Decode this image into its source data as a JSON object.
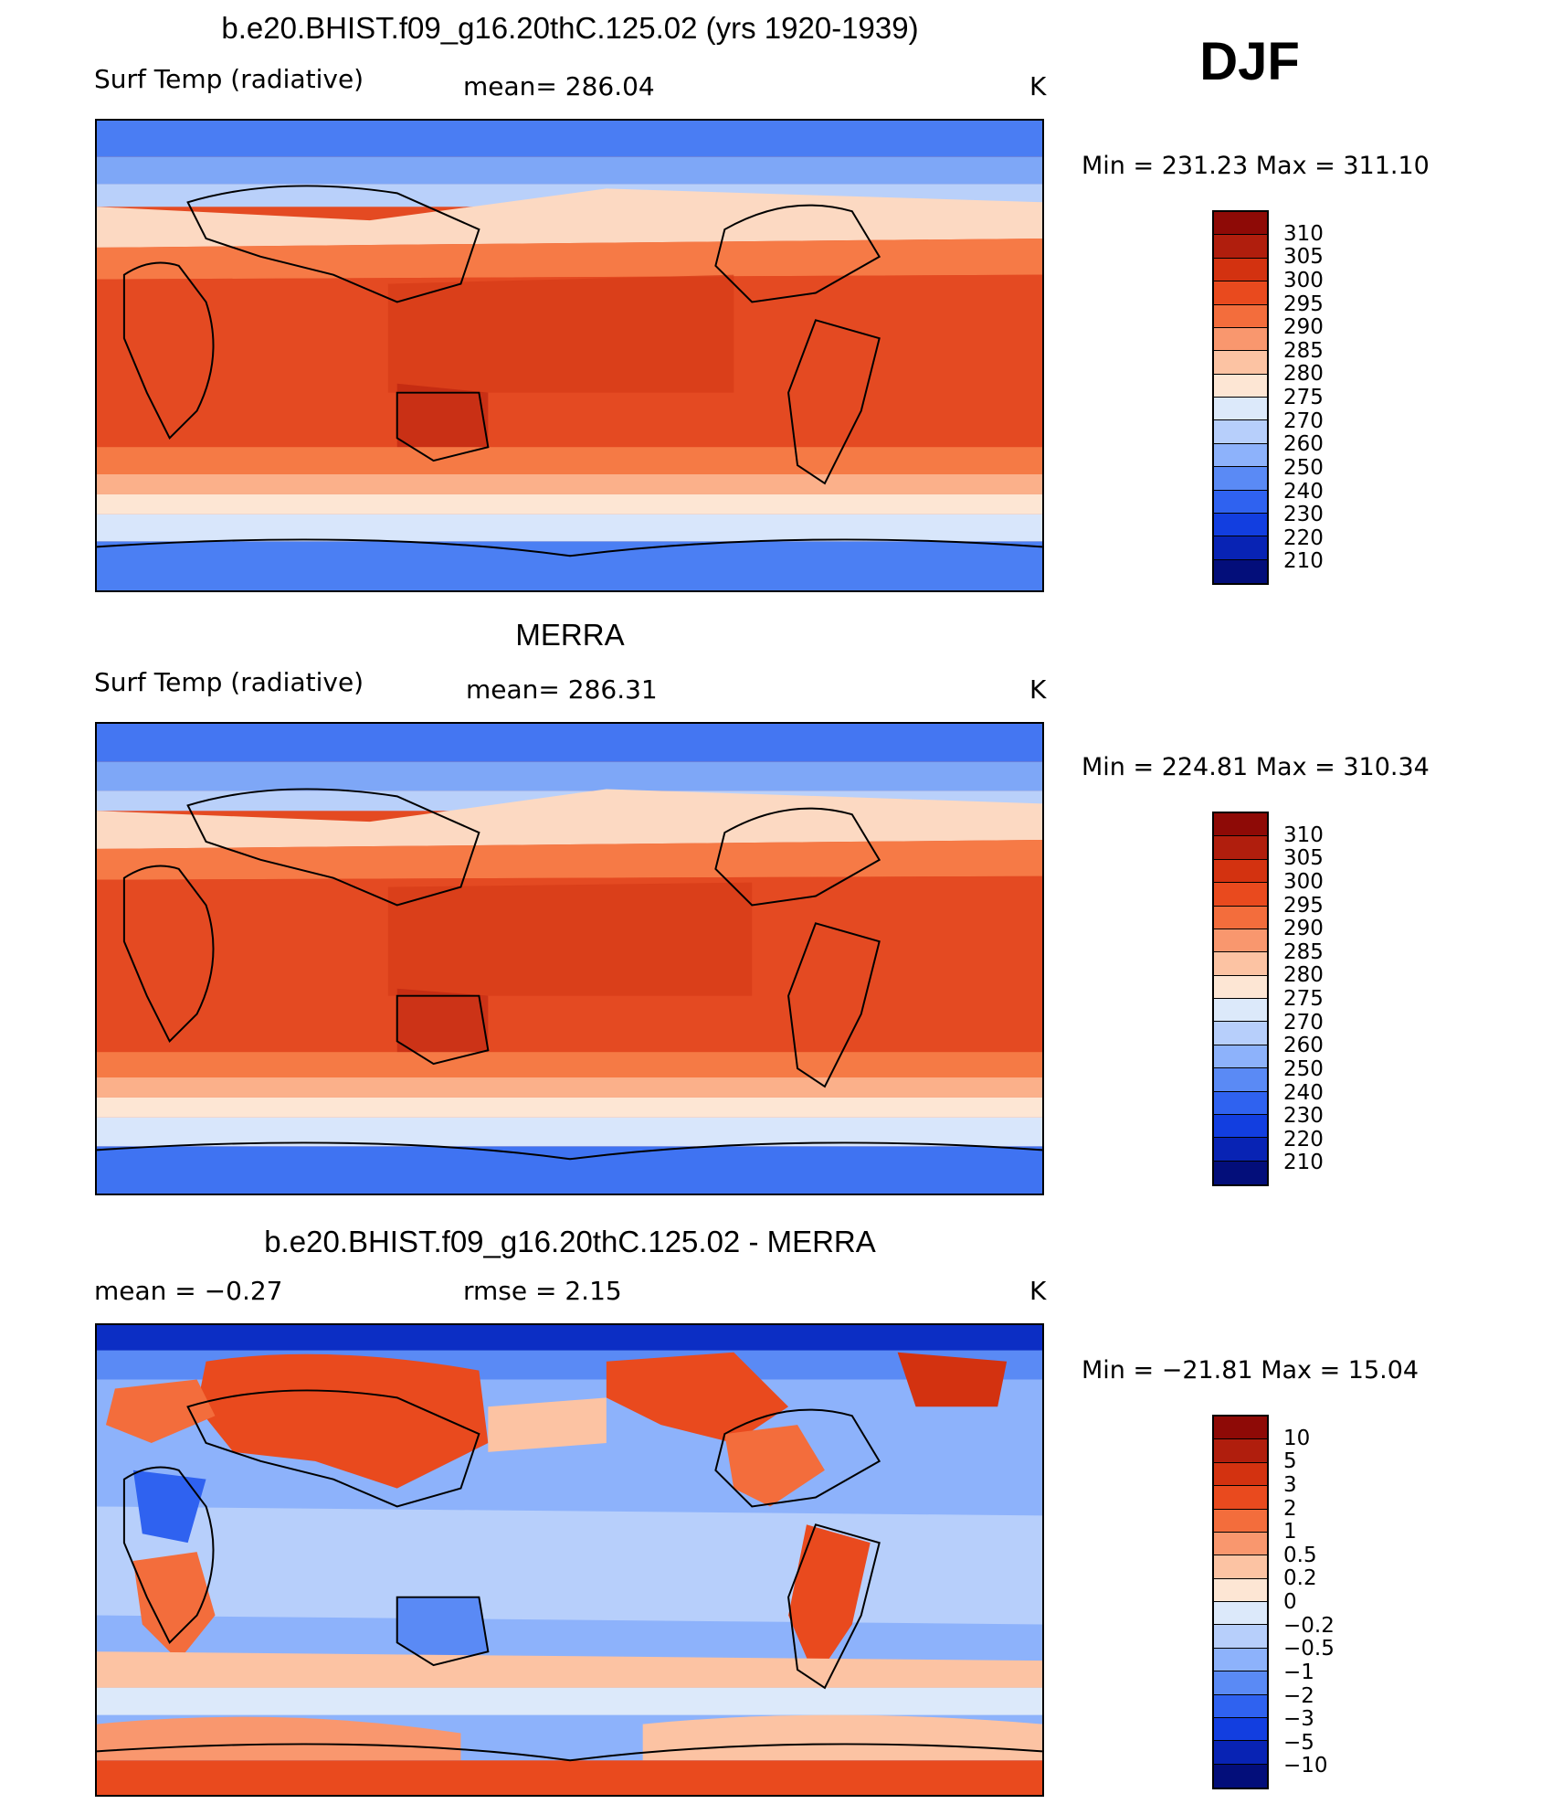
{
  "season": "DJF",
  "panels": [
    {
      "title": "b.e20.BHIST.f09_g16.20thC.125.02 (yrs 1920-1939)",
      "left_label": "Surf Temp (radiative)",
      "center_label": "mean= 286.04",
      "units": "K",
      "minmax": "Min = 231.23 Max = 311.10",
      "colorbar_labels": [
        "310",
        "305",
        "300",
        "295",
        "290",
        "285",
        "280",
        "275",
        "270",
        "260",
        "250",
        "240",
        "230",
        "220",
        "210"
      ],
      "colorbar_colors": [
        "#8e0a06",
        "#b01e0d",
        "#d33210",
        "#e94a1e",
        "#f36d3c",
        "#f9976e",
        "#fcc3a3",
        "#fde6d4",
        "#dce9fa",
        "#b7cffb",
        "#8db2fb",
        "#5a8af5",
        "#2f62f0",
        "#123ee0",
        "#0823b4",
        "#030e7a"
      ]
    },
    {
      "title": "MERRA",
      "left_label": "Surf Temp (radiative)",
      "center_label": "mean= 286.31",
      "units": "K",
      "minmax": "Min = 224.81 Max = 310.34",
      "colorbar_labels": [
        "310",
        "305",
        "300",
        "295",
        "290",
        "285",
        "280",
        "275",
        "270",
        "260",
        "250",
        "240",
        "230",
        "220",
        "210"
      ],
      "colorbar_colors": [
        "#8e0a06",
        "#b01e0d",
        "#d33210",
        "#e94a1e",
        "#f36d3c",
        "#f9976e",
        "#fcc3a3",
        "#fde6d4",
        "#dce9fa",
        "#b7cffb",
        "#8db2fb",
        "#5a8af5",
        "#2f62f0",
        "#123ee0",
        "#0823b4",
        "#030e7a"
      ]
    },
    {
      "title": "b.e20.BHIST.f09_g16.20thC.125.02 - MERRA",
      "left_label": "mean = −0.27",
      "center_label": "rmse = 2.15",
      "units": "K",
      "minmax": "Min = −21.81 Max = 15.04",
      "colorbar_labels": [
        "10",
        "5",
        "3",
        "2",
        "1",
        "0.5",
        "0.2",
        "0",
        "−0.2",
        "−0.5",
        "−1",
        "−2",
        "−3",
        "−5",
        "−10"
      ],
      "colorbar_colors": [
        "#8e0a06",
        "#b01e0d",
        "#d33210",
        "#e94a1e",
        "#f36d3c",
        "#f9976e",
        "#fcc3a3",
        "#fde6d4",
        "#dce9fa",
        "#b7cffb",
        "#8db2fb",
        "#5a8af5",
        "#2f62f0",
        "#123ee0",
        "#0823b4",
        "#030e7a"
      ]
    }
  ]
}
